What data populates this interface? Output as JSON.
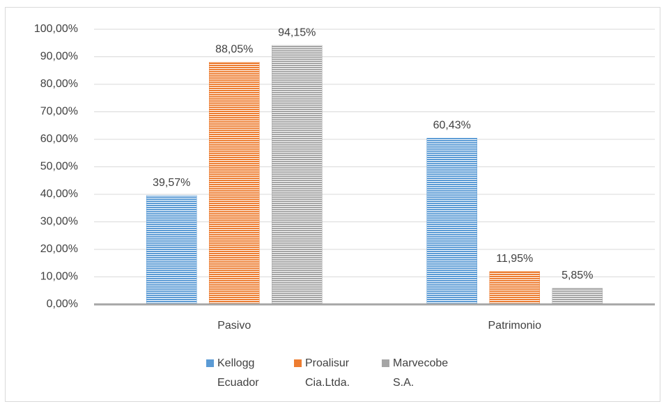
{
  "chart_data": {
    "type": "bar",
    "categories": [
      "Pasivo",
      "Patrimonio"
    ],
    "series": [
      {
        "name": "Kellogg Ecuador",
        "color": "#5b9bd5",
        "values": [
          39.57,
          60.43
        ],
        "value_labels": [
          "39,57%",
          "60,43%"
        ]
      },
      {
        "name": "Proalisur Cia.Ltda.",
        "color": "#ed7d31",
        "values": [
          88.05,
          11.95
        ],
        "value_labels": [
          "88,05%",
          "11,95%"
        ]
      },
      {
        "name": "Marvecobe S.A.",
        "color": "#a5a5a5",
        "values": [
          94.15,
          5.85
        ],
        "value_labels": [
          "94,15%",
          "5,85%"
        ]
      }
    ],
    "ylim": [
      0,
      100
    ],
    "yticks": [
      {
        "value": 0,
        "label": "0,00%"
      },
      {
        "value": 10,
        "label": "10,00%"
      },
      {
        "value": 20,
        "label": "20,00%"
      },
      {
        "value": 30,
        "label": "30,00%"
      },
      {
        "value": 40,
        "label": "40,00%"
      },
      {
        "value": 50,
        "label": "50,00%"
      },
      {
        "value": 60,
        "label": "60,00%"
      },
      {
        "value": 70,
        "label": "70,00%"
      },
      {
        "value": 80,
        "label": "80,00%"
      },
      {
        "value": 90,
        "label": "90,00%"
      },
      {
        "value": 100,
        "label": "100,00%"
      }
    ],
    "grid": true,
    "legend": "bottom"
  }
}
